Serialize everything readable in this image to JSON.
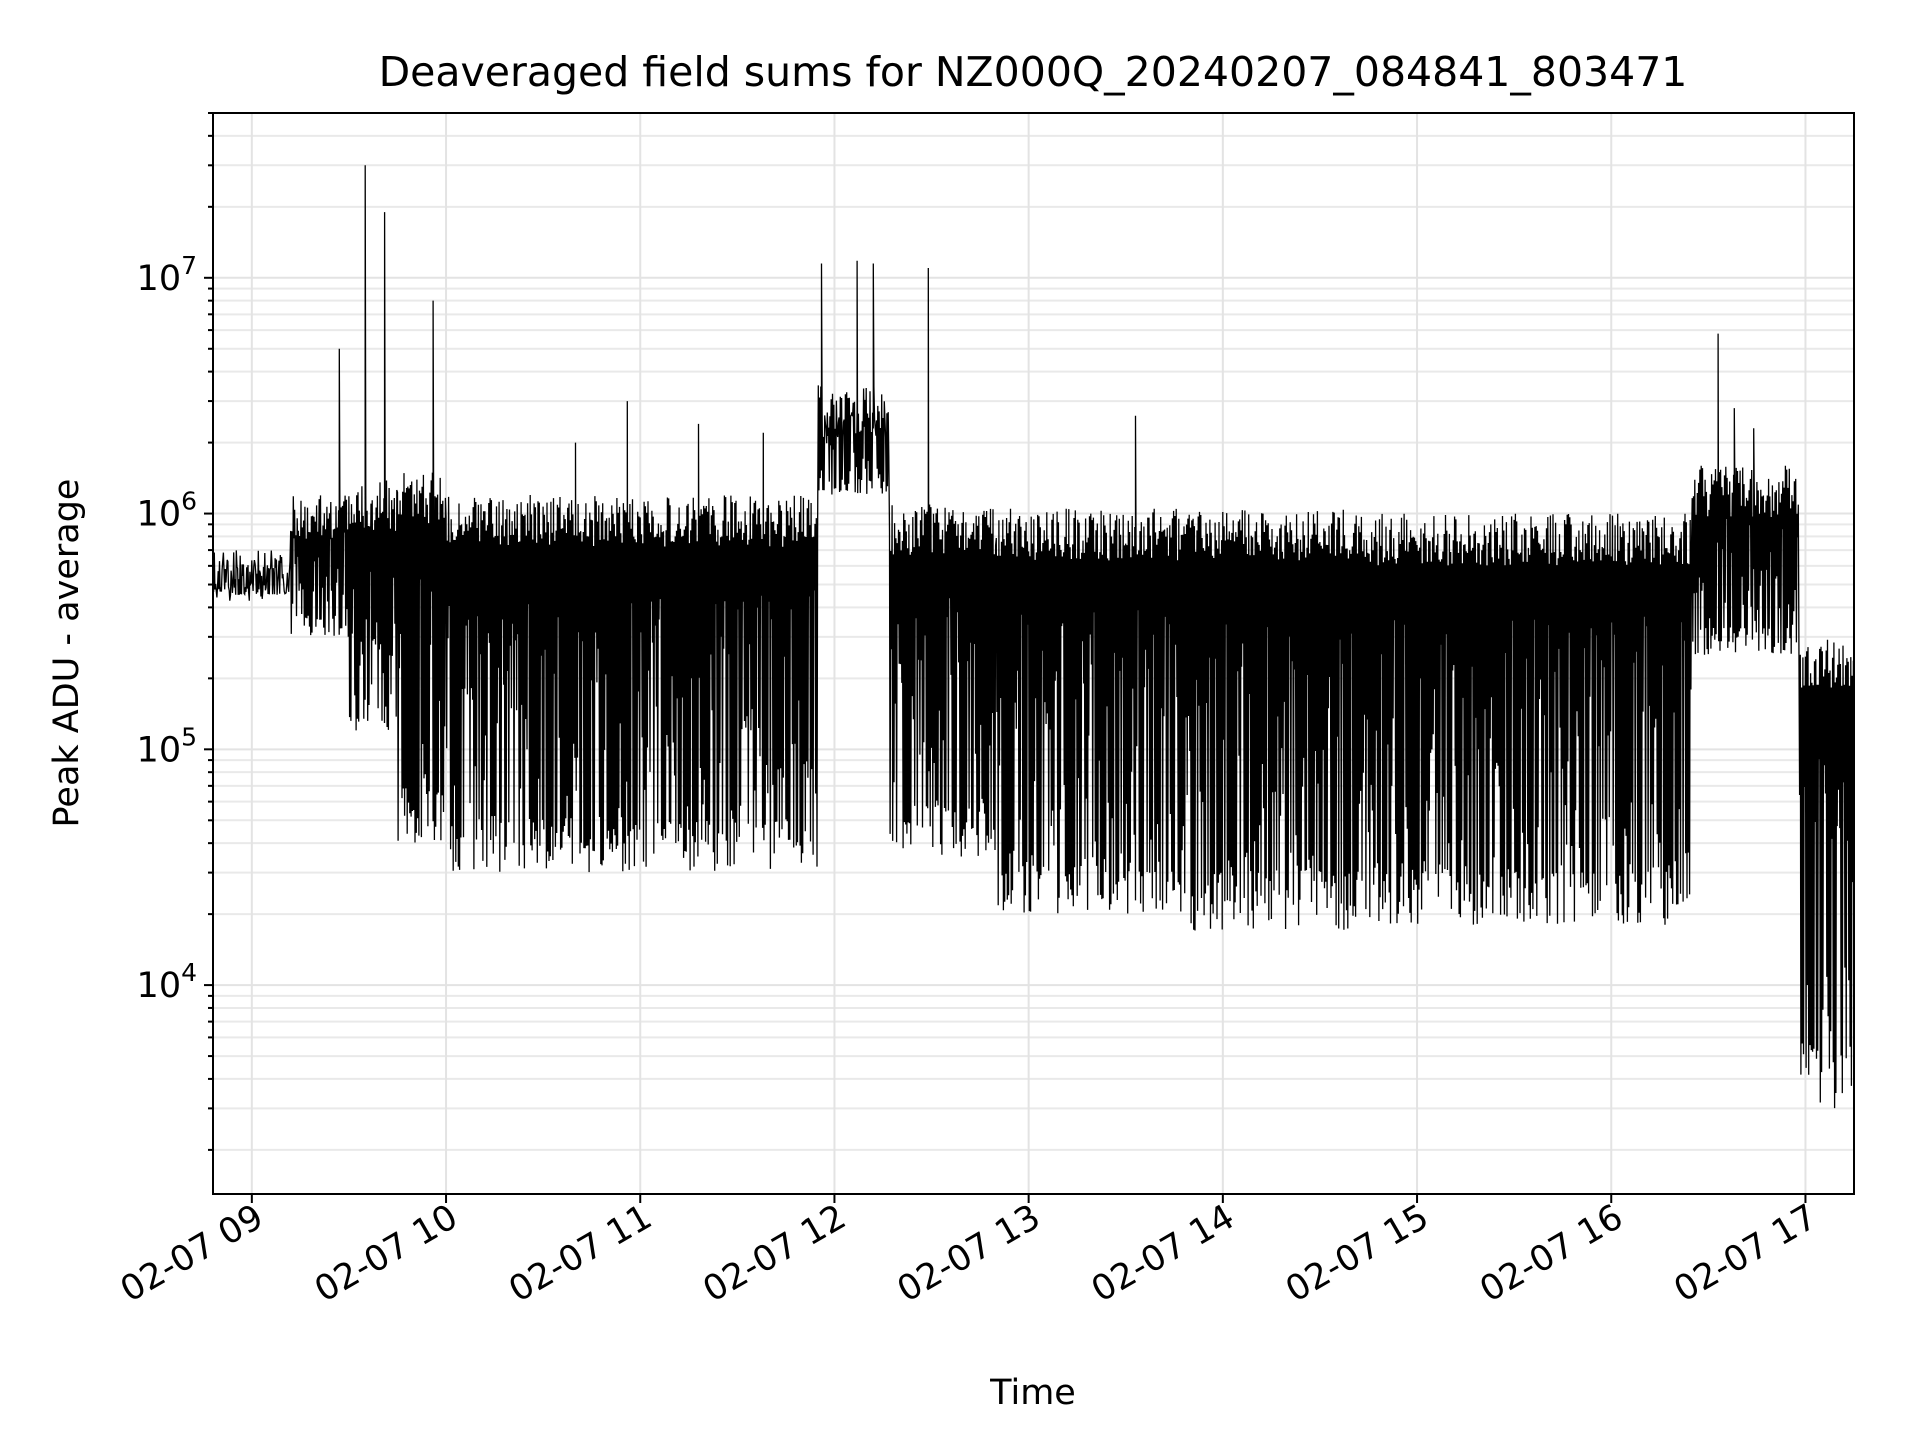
{
  "chart_data": {
    "type": "line",
    "title": "Deaveraged field sums for NZ000Q_20240207_084841_803471",
    "xlabel": "Time",
    "ylabel": "Peak ADU - average",
    "yscale": "log",
    "grid": true,
    "xlim": [
      "02-07 08:48",
      "02-07 17:15"
    ],
    "ylim": [
      1300,
      50000000
    ],
    "x_ticks": [
      "02-07 09",
      "02-07 10",
      "02-07 11",
      "02-07 12",
      "02-07 13",
      "02-07 14",
      "02-07 15",
      "02-07 16",
      "02-07 17"
    ],
    "y_ticks": [
      {
        "value": 10000,
        "base": "10",
        "exp": "4"
      },
      {
        "value": 100000,
        "base": "10",
        "exp": "5"
      },
      {
        "value": 1000000,
        "base": "10",
        "exp": "6"
      },
      {
        "value": 10000000,
        "base": "10",
        "exp": "7"
      }
    ],
    "series": [
      {
        "color": "#000000",
        "segments": [
          {
            "start": "02-07 08:48",
            "end": "02-07 09:12",
            "upper": 700000,
            "lower": 450000
          },
          {
            "start": "02-07 09:12",
            "end": "02-07 09:30",
            "upper": 1200000,
            "lower": 300000
          },
          {
            "start": "02-07 09:30",
            "end": "02-07 09:45",
            "upper": 1400000,
            "lower": 120000
          },
          {
            "start": "02-07 09:45",
            "end": "02-07 10:00",
            "upper": 1500000,
            "lower": 40000
          },
          {
            "start": "02-07 10:00",
            "end": "02-07 11:55",
            "upper": 1200000,
            "lower": 30000
          },
          {
            "start": "02-07 11:55",
            "end": "02-07 12:17",
            "upper": 3500000,
            "lower": 1200000
          },
          {
            "start": "02-07 12:17",
            "end": "02-07 12:50",
            "upper": 1100000,
            "lower": 35000
          },
          {
            "start": "02-07 12:50",
            "end": "02-07 13:50",
            "upper": 1050000,
            "lower": 20000
          },
          {
            "start": "02-07 13:50",
            "end": "02-07 14:42",
            "upper": 1050000,
            "lower": 17000
          },
          {
            "start": "02-07 14:42",
            "end": "02-07 16:25",
            "upper": 1000000,
            "lower": 18000
          },
          {
            "start": "02-07 16:25",
            "end": "02-07 16:58",
            "upper": 1600000,
            "lower": 250000
          },
          {
            "start": "02-07 16:58",
            "end": "02-07 17:15",
            "upper": 300000,
            "lower": 3000
          }
        ],
        "spikes": [
          {
            "x": "02-07 09:27",
            "y": 5000000
          },
          {
            "x": "02-07 09:35",
            "y": 30000000
          },
          {
            "x": "02-07 09:41",
            "y": 19000000
          },
          {
            "x": "02-07 09:56",
            "y": 8000000
          },
          {
            "x": "02-07 10:40",
            "y": 2000000
          },
          {
            "x": "02-07 10:56",
            "y": 3000000
          },
          {
            "x": "02-07 11:18",
            "y": 2400000
          },
          {
            "x": "02-07 11:38",
            "y": 2200000
          },
          {
            "x": "02-07 11:56",
            "y": 11500000
          },
          {
            "x": "02-07 12:07",
            "y": 11800000
          },
          {
            "x": "02-07 12:12",
            "y": 11500000
          },
          {
            "x": "02-07 12:29",
            "y": 11000000
          },
          {
            "x": "02-07 13:33",
            "y": 2600000
          },
          {
            "x": "02-07 16:33",
            "y": 5800000
          },
          {
            "x": "02-07 16:38",
            "y": 2800000
          },
          {
            "x": "02-07 16:44",
            "y": 2300000
          }
        ]
      }
    ]
  }
}
